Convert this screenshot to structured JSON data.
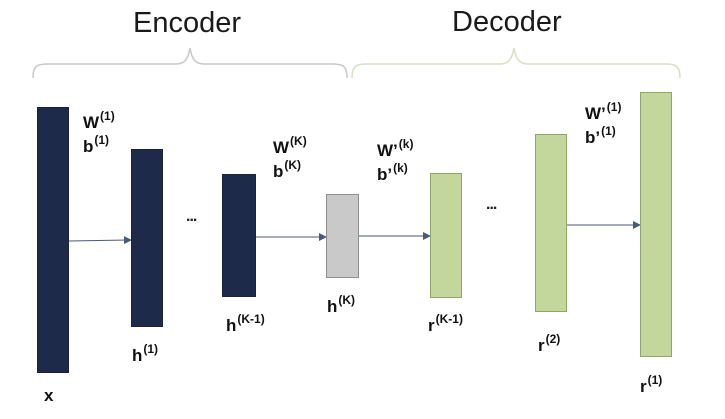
{
  "sections": {
    "encoder": "Encoder",
    "decoder": "Decoder"
  },
  "nodes": {
    "x": {
      "base": "x",
      "sup": ""
    },
    "h1": {
      "base": "h",
      "sup": "(1)"
    },
    "hk1": {
      "base": "h",
      "sup": "(K-1)"
    },
    "hk": {
      "base": "h",
      "sup": "(K)"
    },
    "rk1": {
      "base": "r",
      "sup": "(K-1)"
    },
    "r2": {
      "base": "r",
      "sup": "(2)"
    },
    "r1": {
      "base": "r",
      "sup": "(1)"
    }
  },
  "weights": {
    "enc_first": {
      "w": "W",
      "w_sup": "(1)",
      "b": "b",
      "b_sup": "(1)"
    },
    "enc_last": {
      "w": "W",
      "w_sup": "(K)",
      "b": "b",
      "b_sup": "(K)"
    },
    "dec_first": {
      "w": "W’",
      "w_sup": "(k)",
      "b": "b’",
      "b_sup": "(k)"
    },
    "dec_last": {
      "w": "W’",
      "w_sup": "(1)",
      "b": "b’",
      "b_sup": "(1)"
    }
  },
  "ellipses": {
    "encoder": "...",
    "decoder": "..."
  },
  "colors": {
    "encoder_fill": "#1e2a4a",
    "code_fill": "#c9c9c9",
    "decoder_fill": "#c3d69b",
    "encoder_brace": "#c8c8c8",
    "decoder_brace": "#d6e0c2",
    "arrow": "#4a5a7a"
  }
}
